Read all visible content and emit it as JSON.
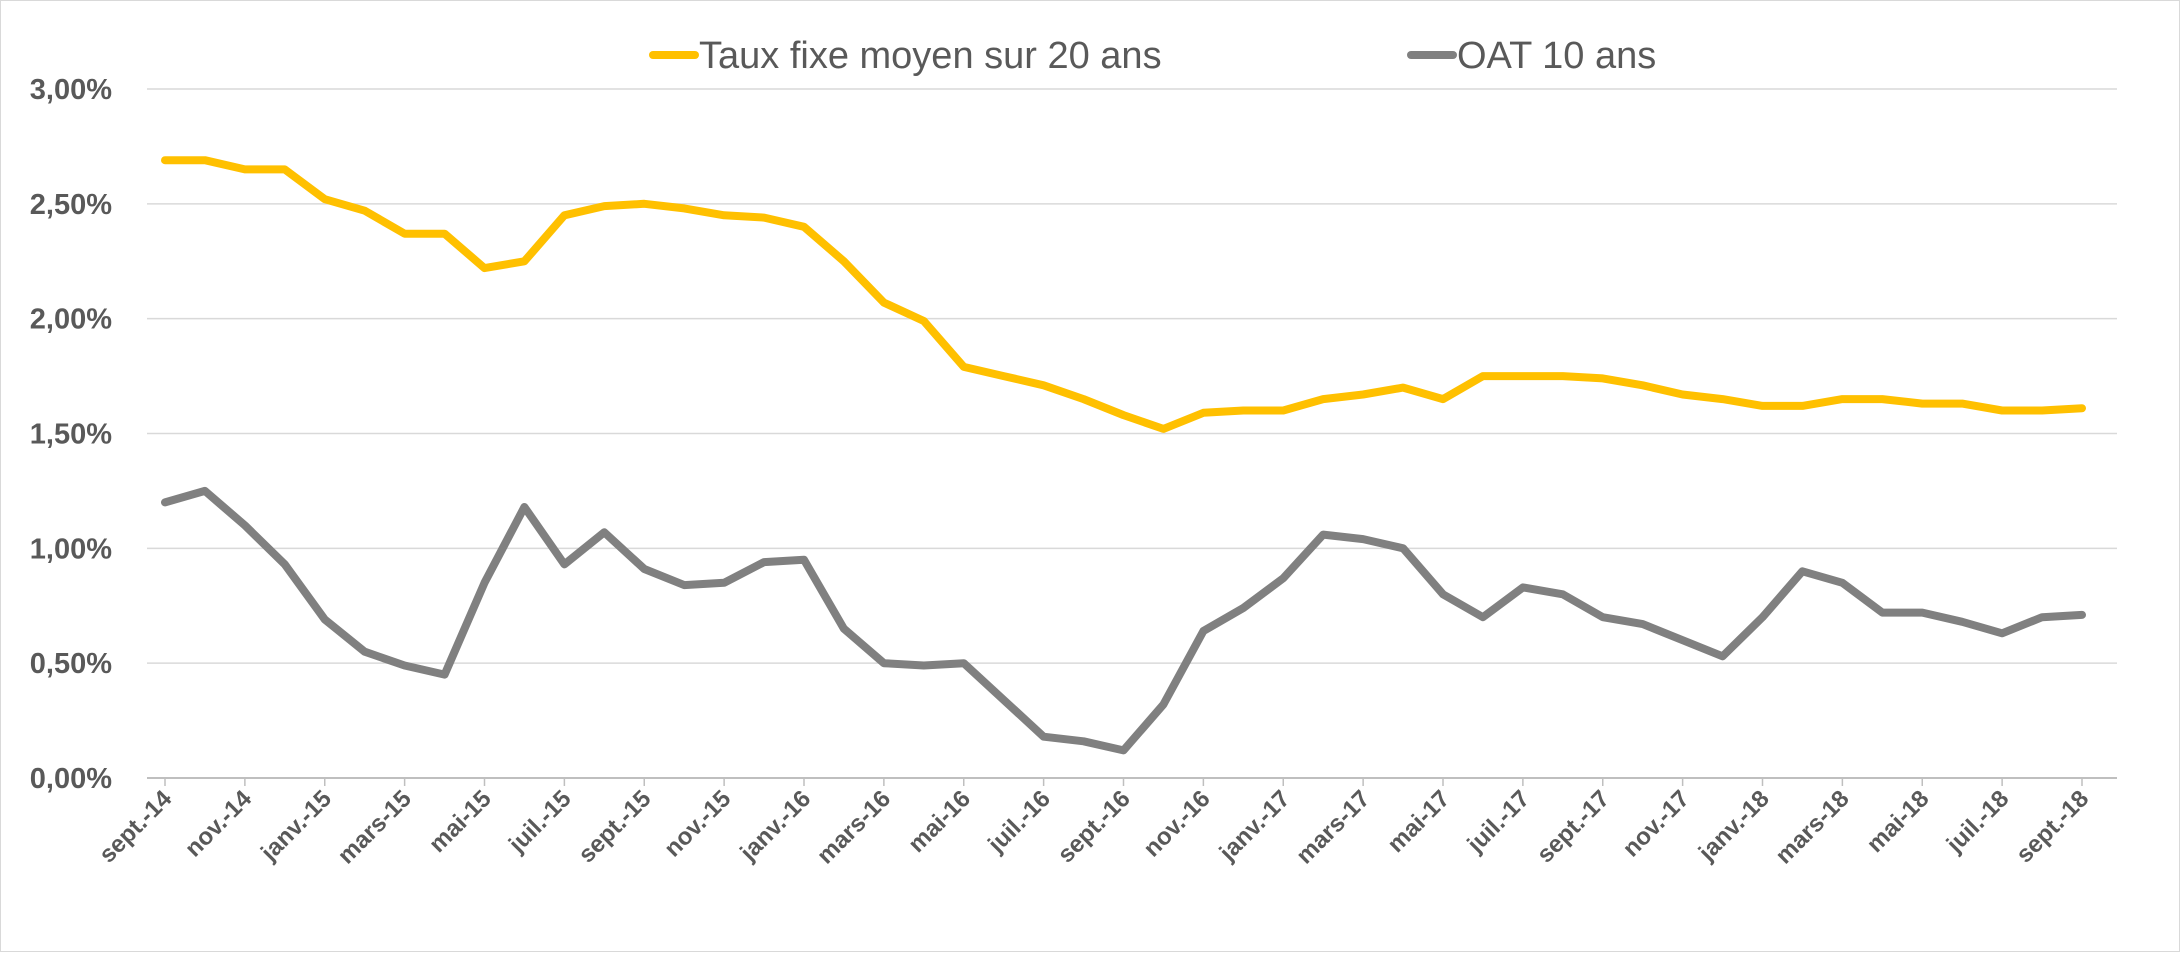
{
  "chart_data": {
    "type": "line",
    "title": "",
    "xlabel": "",
    "ylabel": "",
    "ylim": [
      0,
      3
    ],
    "grid": true,
    "legend_position": "top",
    "y_ticks": [
      "0,00%",
      "0,50%",
      "1,00%",
      "1,50%",
      "2,00%",
      "2,50%",
      "3,00%"
    ],
    "y_tick_values": [
      0,
      0.5,
      1,
      1.5,
      2,
      2.5,
      3
    ],
    "x_tick_labels": [
      "sept.-14",
      "nov.-14",
      "janv.-15",
      "mars-15",
      "mai-15",
      "juil.-15",
      "sept.-15",
      "nov.-15",
      "janv.-16",
      "mars-16",
      "mai-16",
      "juil.-16",
      "sept.-16",
      "nov.-16",
      "janv.-17",
      "mars-17",
      "mai-17",
      "juil.-17",
      "sept.-17",
      "nov.-17",
      "janv.-18",
      "mars-18",
      "mai-18",
      "juil.-18",
      "sept.-18"
    ],
    "x_count": 49,
    "series": [
      {
        "name": "Taux fixe moyen sur 20 ans",
        "color": "#FFC000",
        "values": [
          2.69,
          2.69,
          2.65,
          2.65,
          2.52,
          2.47,
          2.37,
          2.37,
          2.22,
          2.25,
          2.45,
          2.49,
          2.5,
          2.48,
          2.45,
          2.44,
          2.4,
          2.25,
          2.07,
          1.99,
          1.79,
          1.75,
          1.71,
          1.65,
          1.58,
          1.52,
          1.59,
          1.6,
          1.6,
          1.65,
          1.67,
          1.7,
          1.65,
          1.75,
          1.75,
          1.75,
          1.74,
          1.71,
          1.67,
          1.65,
          1.62,
          1.62,
          1.65,
          1.65,
          1.63,
          1.63,
          1.6,
          1.6,
          1.61
        ]
      },
      {
        "name": "OAT 10 ans",
        "color": "#808080",
        "values": [
          1.2,
          1.25,
          1.1,
          0.93,
          0.69,
          0.55,
          0.49,
          0.45,
          0.85,
          1.18,
          0.93,
          1.07,
          0.91,
          0.84,
          0.85,
          0.94,
          0.95,
          0.65,
          0.5,
          0.49,
          0.5,
          0.34,
          0.18,
          0.16,
          0.12,
          0.32,
          0.64,
          0.74,
          0.87,
          1.06,
          1.04,
          1.0,
          0.8,
          0.7,
          0.83,
          0.8,
          0.7,
          0.67,
          0.6,
          0.53,
          0.7,
          0.9,
          0.85,
          0.72,
          0.72,
          0.68,
          0.63,
          0.7,
          0.71
        ]
      }
    ]
  }
}
